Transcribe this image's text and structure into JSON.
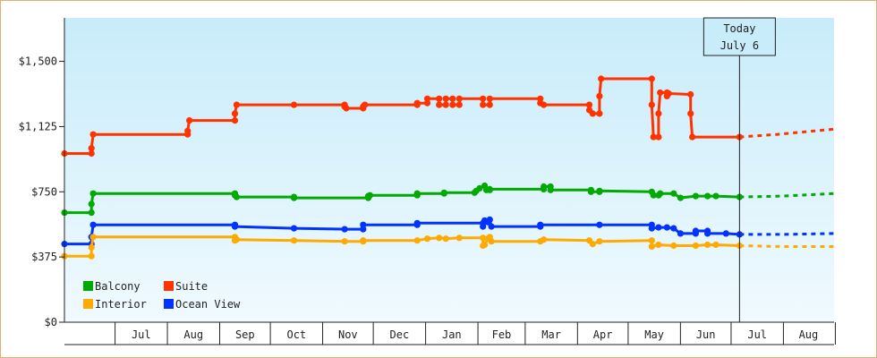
{
  "chart_data": {
    "type": "line",
    "title": "",
    "xlabel": "",
    "ylabel": "",
    "ylim": [
      0,
      1750
    ],
    "yticks": [
      0,
      375,
      750,
      1125,
      1500
    ],
    "ytick_labels": [
      "$0",
      "$375",
      "$750",
      "$1,125",
      "$1,500"
    ],
    "x_domain": [
      "2017-06-01",
      "2018-08-31"
    ],
    "months": [
      {
        "label": "Jul",
        "start": "2017-07-01"
      },
      {
        "label": "Aug",
        "start": "2017-08-01"
      },
      {
        "label": "Sep",
        "start": "2017-09-01"
      },
      {
        "label": "Oct",
        "start": "2017-10-01"
      },
      {
        "label": "Nov",
        "start": "2017-11-01"
      },
      {
        "label": "Dec",
        "start": "2017-12-01"
      },
      {
        "label": "Jan",
        "start": "2018-01-01"
      },
      {
        "label": "Feb",
        "start": "2018-02-01"
      },
      {
        "label": "Mar",
        "start": "2018-03-01"
      },
      {
        "label": "Apr",
        "start": "2018-04-01"
      },
      {
        "label": "May",
        "start": "2018-05-01"
      },
      {
        "label": "Jun",
        "start": "2018-06-01"
      },
      {
        "label": "Jul",
        "start": "2018-07-01"
      },
      {
        "label": "Aug",
        "start": "2018-08-01"
      }
    ],
    "today": {
      "line1": "Today",
      "line2": "July 6",
      "date": "2018-07-06"
    },
    "legend": {
      "placement": "bottom-left"
    },
    "series": [
      {
        "name": "Suite",
        "color": "#ff3300",
        "points": [
          [
            "2017-06-01",
            970
          ],
          [
            "2017-06-17",
            970
          ],
          [
            "2017-06-17",
            1000
          ],
          [
            "2017-06-18",
            1080
          ],
          [
            "2017-08-13",
            1080
          ],
          [
            "2017-08-13",
            1100
          ],
          [
            "2017-08-14",
            1160
          ],
          [
            "2017-09-10",
            1160
          ],
          [
            "2017-09-10",
            1200
          ],
          [
            "2017-09-11",
            1250
          ],
          [
            "2017-10-15",
            1250
          ],
          [
            "2017-11-14",
            1250
          ],
          [
            "2017-11-14",
            1240
          ],
          [
            "2017-11-15",
            1230
          ],
          [
            "2017-11-25",
            1230
          ],
          [
            "2017-11-25",
            1240
          ],
          [
            "2017-11-26",
            1250
          ],
          [
            "2017-12-27",
            1250
          ],
          [
            "2017-12-27",
            1260
          ],
          [
            "2018-01-02",
            1260
          ],
          [
            "2018-01-02",
            1285
          ],
          [
            "2018-01-09",
            1285
          ],
          [
            "2018-01-09",
            1250
          ],
          [
            "2018-01-13",
            1250
          ],
          [
            "2018-01-13",
            1285
          ],
          [
            "2018-01-17",
            1285
          ],
          [
            "2018-01-17",
            1250
          ],
          [
            "2018-01-21",
            1250
          ],
          [
            "2018-01-21",
            1285
          ],
          [
            "2018-02-04",
            1285
          ],
          [
            "2018-02-04",
            1250
          ],
          [
            "2018-02-08",
            1250
          ],
          [
            "2018-02-08",
            1285
          ],
          [
            "2018-03-10",
            1285
          ],
          [
            "2018-03-10",
            1260
          ],
          [
            "2018-03-12",
            1250
          ],
          [
            "2018-04-08",
            1250
          ],
          [
            "2018-04-08",
            1220
          ],
          [
            "2018-04-10",
            1200
          ],
          [
            "2018-04-14",
            1200
          ],
          [
            "2018-04-14",
            1300
          ],
          [
            "2018-04-15",
            1400
          ],
          [
            "2018-05-15",
            1400
          ],
          [
            "2018-05-15",
            1250
          ],
          [
            "2018-05-16",
            1065
          ],
          [
            "2018-05-19",
            1065
          ],
          [
            "2018-05-19",
            1200
          ],
          [
            "2018-05-20",
            1320
          ],
          [
            "2018-05-24",
            1320
          ],
          [
            "2018-05-24",
            1300
          ],
          [
            "2018-05-25",
            1315
          ],
          [
            "2018-06-07",
            1310
          ],
          [
            "2018-06-07",
            1200
          ],
          [
            "2018-06-08",
            1065
          ],
          [
            "2018-07-06",
            1065
          ]
        ],
        "forecast": [
          [
            "2018-07-06",
            1065
          ],
          [
            "2018-07-28",
            1080
          ],
          [
            "2018-08-31",
            1110
          ]
        ]
      },
      {
        "name": "Balcony",
        "color": "#00aa00",
        "points": [
          [
            "2017-06-01",
            630
          ],
          [
            "2017-06-17",
            630
          ],
          [
            "2017-06-17",
            680
          ],
          [
            "2017-06-18",
            740
          ],
          [
            "2017-09-10",
            740
          ],
          [
            "2017-09-10",
            730
          ],
          [
            "2017-09-11",
            720
          ],
          [
            "2017-10-15",
            720
          ],
          [
            "2017-10-15",
            715
          ],
          [
            "2017-11-28",
            715
          ],
          [
            "2017-11-28",
            725
          ],
          [
            "2017-11-29",
            730
          ],
          [
            "2017-12-27",
            730
          ],
          [
            "2017-12-27",
            740
          ],
          [
            "2018-01-12",
            740
          ],
          [
            "2018-01-12",
            745
          ],
          [
            "2018-01-30",
            745
          ],
          [
            "2018-01-31",
            755
          ],
          [
            "2018-02-02",
            770
          ],
          [
            "2018-02-05",
            785
          ],
          [
            "2018-02-06",
            760
          ],
          [
            "2018-02-08",
            760
          ],
          [
            "2018-02-08",
            765
          ],
          [
            "2018-03-12",
            765
          ],
          [
            "2018-03-12",
            780
          ],
          [
            "2018-03-16",
            780
          ],
          [
            "2018-03-16",
            760
          ],
          [
            "2018-04-09",
            760
          ],
          [
            "2018-04-09",
            750
          ],
          [
            "2018-04-14",
            750
          ],
          [
            "2018-04-14",
            755
          ],
          [
            "2018-05-15",
            750
          ],
          [
            "2018-05-16",
            730
          ],
          [
            "2018-05-19",
            730
          ],
          [
            "2018-05-20",
            740
          ],
          [
            "2018-05-28",
            740
          ],
          [
            "2018-06-01",
            715
          ],
          [
            "2018-06-10",
            725
          ],
          [
            "2018-06-17",
            725
          ],
          [
            "2018-06-22",
            725
          ],
          [
            "2018-07-06",
            720
          ]
        ],
        "forecast": [
          [
            "2018-07-06",
            720
          ],
          [
            "2018-08-01",
            725
          ],
          [
            "2018-08-31",
            740
          ]
        ]
      },
      {
        "name": "Ocean View",
        "color": "#0033ff",
        "points": [
          [
            "2017-06-01",
            450
          ],
          [
            "2017-06-17",
            450
          ],
          [
            "2017-06-17",
            490
          ],
          [
            "2017-06-18",
            560
          ],
          [
            "2017-09-10",
            560
          ],
          [
            "2017-09-10",
            550
          ],
          [
            "2017-10-15",
            540
          ],
          [
            "2017-11-14",
            535
          ],
          [
            "2017-11-25",
            535
          ],
          [
            "2017-11-25",
            560
          ],
          [
            "2017-12-27",
            560
          ],
          [
            "2017-12-27",
            570
          ],
          [
            "2018-02-04",
            570
          ],
          [
            "2018-02-04",
            550
          ],
          [
            "2018-02-05",
            585
          ],
          [
            "2018-02-07",
            575
          ],
          [
            "2018-02-08",
            590
          ],
          [
            "2018-02-09",
            550
          ],
          [
            "2018-03-10",
            550
          ],
          [
            "2018-03-10",
            560
          ],
          [
            "2018-04-14",
            560
          ],
          [
            "2018-05-15",
            560
          ],
          [
            "2018-05-15",
            540
          ],
          [
            "2018-05-19",
            545
          ],
          [
            "2018-05-24",
            545
          ],
          [
            "2018-05-28",
            540
          ],
          [
            "2018-06-01",
            510
          ],
          [
            "2018-06-10",
            510
          ],
          [
            "2018-06-10",
            525
          ],
          [
            "2018-06-17",
            525
          ],
          [
            "2018-06-17",
            510
          ],
          [
            "2018-06-28",
            510
          ],
          [
            "2018-07-06",
            505
          ]
        ],
        "forecast": [
          [
            "2018-07-06",
            505
          ],
          [
            "2018-08-01",
            505
          ],
          [
            "2018-08-31",
            510
          ]
        ]
      },
      {
        "name": "Interior",
        "color": "#ffaa00",
        "points": [
          [
            "2017-06-01",
            380
          ],
          [
            "2017-06-17",
            380
          ],
          [
            "2017-06-17",
            430
          ],
          [
            "2017-06-18",
            490
          ],
          [
            "2017-09-10",
            490
          ],
          [
            "2017-09-10",
            470
          ],
          [
            "2017-09-11",
            475
          ],
          [
            "2017-10-15",
            470
          ],
          [
            "2017-11-14",
            465
          ],
          [
            "2017-11-25",
            465
          ],
          [
            "2017-11-25",
            470
          ],
          [
            "2017-12-27",
            470
          ],
          [
            "2018-01-02",
            480
          ],
          [
            "2018-01-09",
            485
          ],
          [
            "2018-01-13",
            480
          ],
          [
            "2018-01-21",
            485
          ],
          [
            "2018-02-04",
            485
          ],
          [
            "2018-02-04",
            440
          ],
          [
            "2018-02-05",
            445
          ],
          [
            "2018-02-07",
            480
          ],
          [
            "2018-02-08",
            490
          ],
          [
            "2018-02-09",
            465
          ],
          [
            "2018-03-10",
            465
          ],
          [
            "2018-03-12",
            475
          ],
          [
            "2018-04-08",
            470
          ],
          [
            "2018-04-10",
            450
          ],
          [
            "2018-04-14",
            465
          ],
          [
            "2018-05-15",
            470
          ],
          [
            "2018-05-15",
            435
          ],
          [
            "2018-05-19",
            445
          ],
          [
            "2018-05-28",
            440
          ],
          [
            "2018-06-10",
            440
          ],
          [
            "2018-06-17",
            445
          ],
          [
            "2018-06-22",
            445
          ],
          [
            "2018-07-06",
            440
          ]
        ],
        "forecast": [
          [
            "2018-07-06",
            440
          ],
          [
            "2018-08-01",
            435
          ],
          [
            "2018-08-31",
            435
          ]
        ]
      }
    ]
  }
}
